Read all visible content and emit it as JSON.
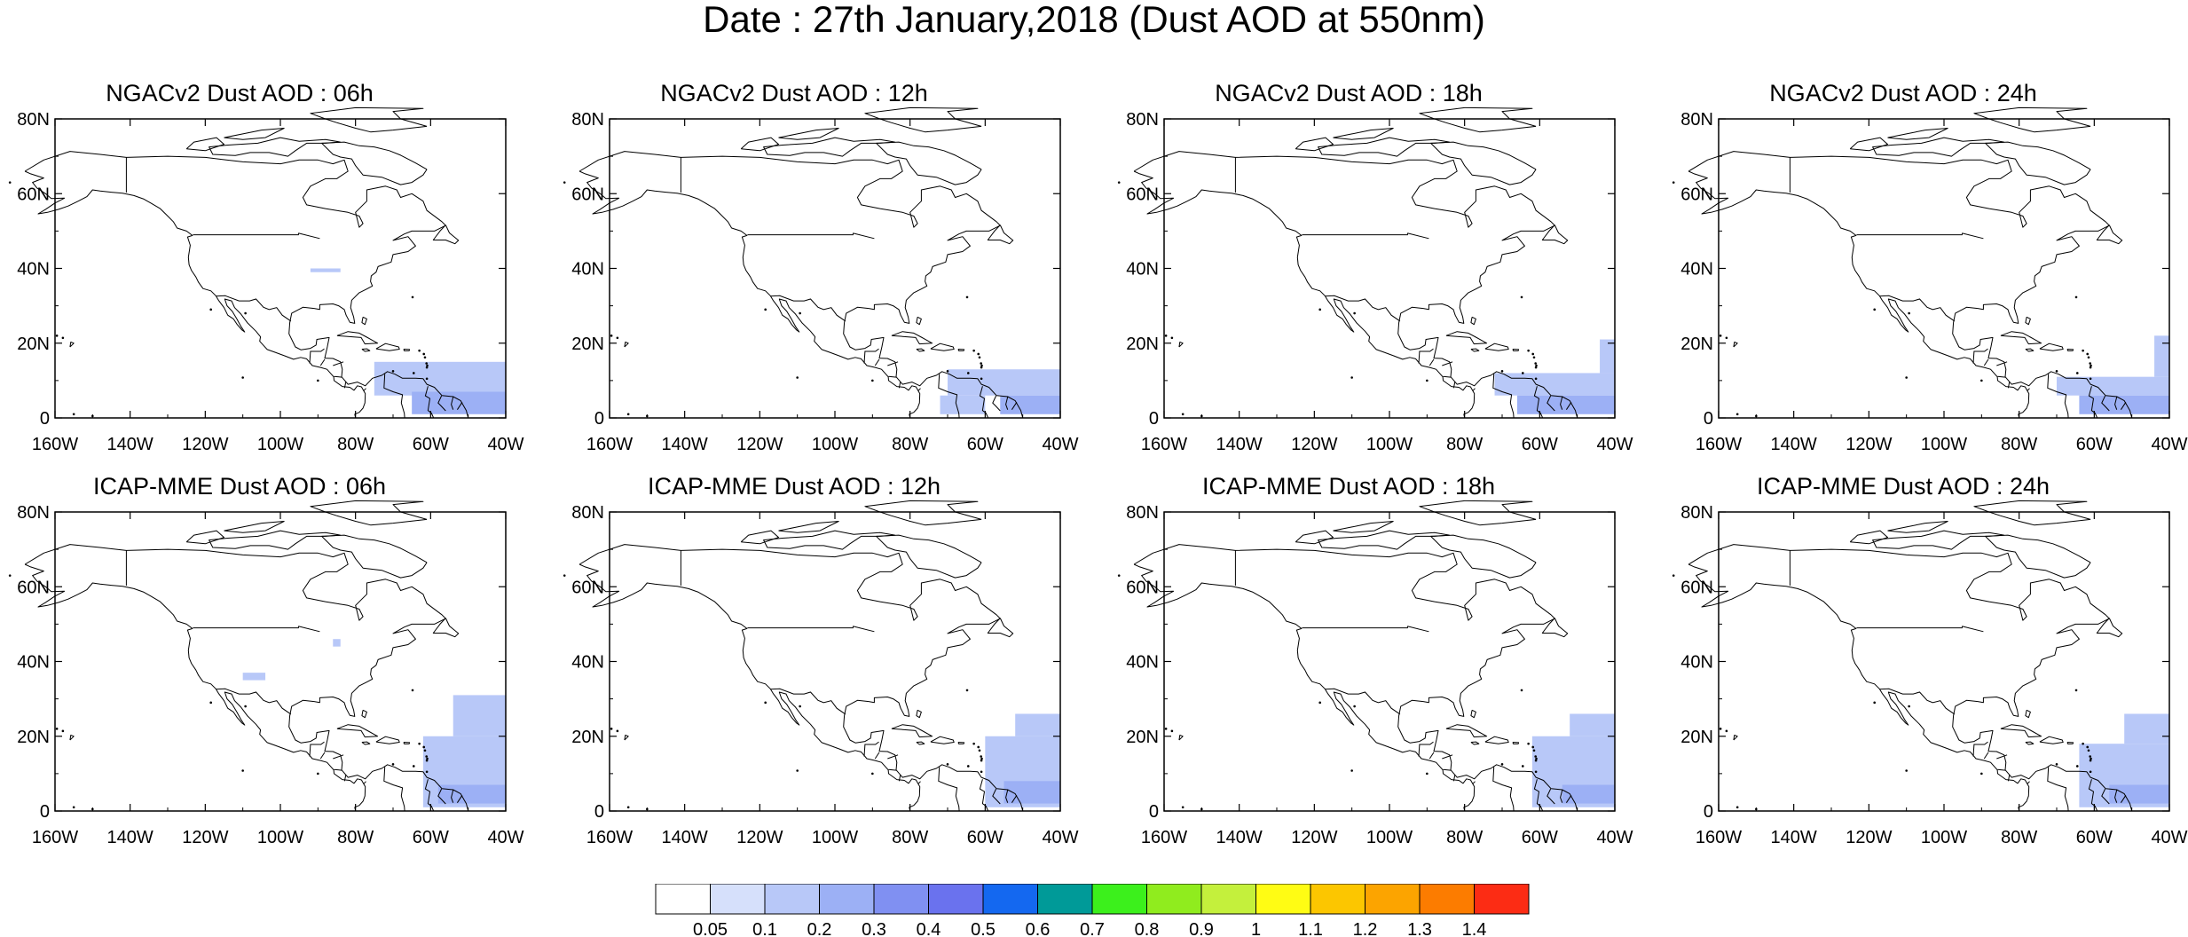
{
  "title": "Date : 27th January,2018 (Dust AOD at 550nm)",
  "panels": [
    {
      "title": "NGACv2 Dust AOD : 06h"
    },
    {
      "title": "NGACv2 Dust AOD : 12h"
    },
    {
      "title": "NGACv2 Dust AOD : 18h"
    },
    {
      "title": "NGACv2 Dust AOD : 24h"
    },
    {
      "title": "ICAP-MME Dust AOD : 06h"
    },
    {
      "title": "ICAP-MME Dust AOD : 12h"
    },
    {
      "title": "ICAP-MME Dust AOD : 18h"
    },
    {
      "title": "ICAP-MME Dust AOD : 24h"
    }
  ],
  "chart_data": {
    "type": "heatmap",
    "title": "Date : 27th January,2018 (Dust AOD at 550nm)",
    "xlim": [
      -160,
      -40
    ],
    "ylim": [
      0,
      80
    ],
    "x_ticks": [
      "160W",
      "140W",
      "120W",
      "100W",
      "80W",
      "60W",
      "40W"
    ],
    "y_ticks": [
      "0",
      "20N",
      "40N",
      "60N",
      "80N"
    ],
    "colorbar": {
      "labels": [
        "0.05",
        "0.1",
        "0.2",
        "0.3",
        "0.4",
        "0.5",
        "0.6",
        "0.7",
        "0.8",
        "0.9",
        "1",
        "1.1",
        "1.2",
        "1.3",
        "1.4"
      ],
      "colors": [
        "#ffffff",
        "#d6e0fb",
        "#b8c8f8",
        "#9cb0f5",
        "#8090f2",
        "#6a72ee",
        "#1468f0",
        "#009a98",
        "#3cf01c",
        "#90ec1e",
        "#c4f03c",
        "#fffc14",
        "#fcc600",
        "#fca400",
        "#fc7c00",
        "#fc2c14"
      ]
    },
    "panels": [
      {
        "name": "NGACv2 Dust AOD : 06h",
        "dust_regions": [
          {
            "lon": [
              -75,
              -40
            ],
            "lat": [
              6,
              15
            ],
            "aod": 0.1
          },
          {
            "lon": [
              -65,
              -40
            ],
            "lat": [
              1,
              7
            ],
            "aod": 0.2
          },
          {
            "lon": [
              -92,
              -84
            ],
            "lat": [
              39,
              40
            ],
            "aod": 0.1
          }
        ]
      },
      {
        "name": "NGACv2 Dust AOD : 12h",
        "dust_regions": [
          {
            "lon": [
              -70,
              -40
            ],
            "lat": [
              6,
              13
            ],
            "aod": 0.1
          },
          {
            "lon": [
              -72,
              -60
            ],
            "lat": [
              1,
              6
            ],
            "aod": 0.1
          },
          {
            "lon": [
              -56,
              -40
            ],
            "lat": [
              1,
              6
            ],
            "aod": 0.2
          }
        ]
      },
      {
        "name": "NGACv2 Dust AOD : 18h",
        "dust_regions": [
          {
            "lon": [
              -72,
              -40
            ],
            "lat": [
              6,
              12
            ],
            "aod": 0.1
          },
          {
            "lon": [
              -44,
              -40
            ],
            "lat": [
              12,
              21
            ],
            "aod": 0.1
          },
          {
            "lon": [
              -66,
              -40
            ],
            "lat": [
              1,
              6
            ],
            "aod": 0.2
          }
        ]
      },
      {
        "name": "NGACv2 Dust AOD : 24h",
        "dust_regions": [
          {
            "lon": [
              -70,
              -40
            ],
            "lat": [
              6,
              11
            ],
            "aod": 0.1
          },
          {
            "lon": [
              -44,
              -40
            ],
            "lat": [
              11,
              22
            ],
            "aod": 0.1
          },
          {
            "lon": [
              -64,
              -40
            ],
            "lat": [
              1,
              6
            ],
            "aod": 0.2
          }
        ]
      },
      {
        "name": "ICAP-MME Dust AOD : 06h",
        "dust_regions": [
          {
            "lon": [
              -62,
              -40
            ],
            "lat": [
              1,
              20
            ],
            "aod": 0.1
          },
          {
            "lon": [
              -54,
              -40
            ],
            "lat": [
              20,
              31
            ],
            "aod": 0.1
          },
          {
            "lon": [
              -58,
              -40
            ],
            "lat": [
              2,
              7
            ],
            "aod": 0.2
          },
          {
            "lon": [
              -110,
              -104
            ],
            "lat": [
              35,
              37
            ],
            "aod": 0.1
          },
          {
            "lon": [
              -86,
              -84
            ],
            "lat": [
              44,
              46
            ],
            "aod": 0.1
          }
        ]
      },
      {
        "name": "ICAP-MME Dust AOD : 12h",
        "dust_regions": [
          {
            "lon": [
              -60,
              -40
            ],
            "lat": [
              1,
              20
            ],
            "aod": 0.1
          },
          {
            "lon": [
              -52,
              -40
            ],
            "lat": [
              20,
              26
            ],
            "aod": 0.1
          },
          {
            "lon": [
              -55,
              -40
            ],
            "lat": [
              2,
              8
            ],
            "aod": 0.2
          }
        ]
      },
      {
        "name": "ICAP-MME Dust AOD : 18h",
        "dust_regions": [
          {
            "lon": [
              -62,
              -40
            ],
            "lat": [
              1,
              20
            ],
            "aod": 0.1
          },
          {
            "lon": [
              -52,
              -40
            ],
            "lat": [
              20,
              26
            ],
            "aod": 0.1
          },
          {
            "lon": [
              -54,
              -40
            ],
            "lat": [
              2,
              7
            ],
            "aod": 0.2
          }
        ]
      },
      {
        "name": "ICAP-MME Dust AOD : 24h",
        "dust_regions": [
          {
            "lon": [
              -64,
              -40
            ],
            "lat": [
              1,
              18
            ],
            "aod": 0.1
          },
          {
            "lon": [
              -52,
              -40
            ],
            "lat": [
              18,
              26
            ],
            "aod": 0.1
          },
          {
            "lon": [
              -56,
              -40
            ],
            "lat": [
              2,
              7
            ],
            "aod": 0.2
          }
        ]
      }
    ]
  }
}
